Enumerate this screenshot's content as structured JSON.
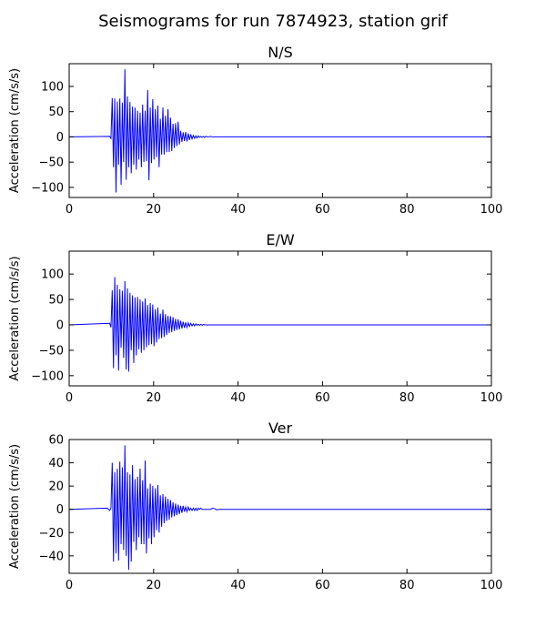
{
  "figure": {
    "title": "Seismograms for run 7874923, station grif"
  },
  "chart_data": [
    {
      "type": "line",
      "title": "N/S",
      "xlabel": "",
      "ylabel": "Acceleration (cm/s/s)",
      "xlim": [
        0,
        100
      ],
      "ylim": [
        -120,
        145
      ],
      "xticks": [
        0,
        20,
        40,
        60,
        80,
        100
      ],
      "yticks": [
        -100,
        -50,
        0,
        50,
        100
      ],
      "grid": false,
      "series": [
        {
          "color": "#0000ff",
          "x": [
            0,
            9.6,
            9.9,
            10.2,
            10.5,
            10.8,
            11.1,
            11.4,
            11.7,
            12.0,
            12.3,
            12.6,
            12.9,
            13.2,
            13.5,
            13.8,
            14.1,
            14.4,
            14.7,
            15.0,
            15.3,
            15.6,
            15.9,
            16.2,
            16.5,
            16.8,
            17.1,
            17.4,
            17.7,
            18.0,
            18.3,
            18.6,
            18.9,
            19.2,
            19.5,
            19.8,
            20.1,
            20.4,
            20.7,
            21.0,
            21.3,
            21.6,
            21.9,
            22.2,
            22.5,
            22.8,
            23.1,
            23.4,
            23.7,
            24.0,
            24.3,
            24.6,
            24.9,
            25.2,
            25.5,
            25.8,
            26.1,
            26.4,
            26.7,
            27.0,
            27.3,
            27.6,
            27.9,
            28.2,
            28.5,
            28.8,
            29.1,
            29.4,
            29.7,
            30.0,
            30.3,
            30.6,
            30.9,
            31.2,
            31.5,
            31.8,
            32.1,
            32.4,
            32.7,
            33.0,
            33.5,
            34.0,
            35.0,
            100
          ],
          "y": [
            0,
            1,
            -3,
            77,
            -60,
            76,
            -110,
            70,
            -55,
            76,
            -95,
            68,
            -50,
            134,
            -85,
            80,
            -60,
            69,
            -72,
            60,
            -55,
            58,
            -65,
            52,
            -45,
            48,
            -60,
            64,
            -50,
            52,
            -48,
            93,
            -86,
            58,
            -52,
            75,
            -45,
            55,
            -40,
            62,
            -60,
            36,
            -35,
            58,
            -35,
            42,
            -30,
            55,
            -30,
            38,
            -28,
            26,
            -22,
            27,
            -18,
            30,
            -15,
            12,
            -10,
            9,
            -8,
            10,
            -9,
            7,
            -6,
            5,
            -4,
            3,
            -3,
            2,
            -2,
            2,
            -1,
            1,
            -1,
            1,
            -1,
            1,
            0,
            0,
            1,
            0,
            0,
            0
          ]
        }
      ]
    },
    {
      "type": "line",
      "title": "E/W",
      "xlabel": "",
      "ylabel": "Acceleration (cm/s/s)",
      "xlim": [
        0,
        100
      ],
      "ylim": [
        -120,
        145
      ],
      "xticks": [
        0,
        20,
        40,
        60,
        80,
        100
      ],
      "yticks": [
        -100,
        -50,
        0,
        50,
        100
      ],
      "grid": false,
      "series": [
        {
          "color": "#0000ff",
          "x": [
            0,
            9.6,
            9.9,
            10.2,
            10.5,
            10.8,
            11.1,
            11.4,
            11.7,
            12.0,
            12.3,
            12.6,
            12.9,
            13.2,
            13.5,
            13.8,
            14.1,
            14.4,
            14.7,
            15.0,
            15.3,
            15.6,
            15.9,
            16.2,
            16.5,
            16.8,
            17.1,
            17.4,
            17.7,
            18.0,
            18.3,
            18.6,
            18.9,
            19.2,
            19.5,
            19.8,
            20.1,
            20.4,
            20.7,
            21.0,
            21.3,
            21.6,
            21.9,
            22.2,
            22.5,
            22.8,
            23.1,
            23.4,
            23.7,
            24.0,
            24.3,
            24.6,
            24.9,
            25.2,
            25.5,
            25.8,
            26.1,
            26.4,
            26.7,
            27.0,
            27.3,
            27.6,
            27.9,
            28.2,
            28.5,
            28.8,
            29.1,
            29.4,
            29.7,
            30.0,
            30.3,
            30.6,
            30.9,
            31.2,
            31.5,
            31.8,
            32.1,
            32.4,
            32.7,
            33.0,
            33.5,
            34.0,
            35.0,
            100
          ],
          "y": [
            0,
            3,
            -5,
            68,
            -85,
            94,
            -60,
            79,
            -90,
            70,
            -45,
            67,
            -65,
            86,
            -88,
            72,
            -92,
            63,
            -50,
            58,
            -75,
            54,
            -60,
            55,
            -48,
            50,
            -55,
            46,
            -50,
            52,
            -44,
            39,
            -40,
            43,
            -38,
            40,
            -42,
            31,
            -35,
            34,
            -28,
            22,
            -26,
            30,
            -24,
            21,
            -20,
            18,
            -16,
            17,
            -14,
            15,
            -12,
            12,
            -10,
            11,
            -9,
            8,
            -7,
            6,
            -6,
            5,
            -5,
            4,
            -3,
            3,
            -2,
            2,
            -2,
            2,
            -1,
            1,
            -1,
            1,
            -1,
            1,
            0,
            0,
            0,
            0,
            0,
            0,
            0,
            0
          ]
        }
      ]
    },
    {
      "type": "line",
      "title": "Ver",
      "xlabel": "",
      "ylabel": "Acceleration (cm/s/s)",
      "xlim": [
        0,
        100
      ],
      "ylim": [
        -55,
        60
      ],
      "xticks": [
        0,
        20,
        40,
        60,
        80,
        100
      ],
      "yticks": [
        -40,
        -20,
        0,
        20,
        40,
        60
      ],
      "grid": false,
      "series": [
        {
          "color": "#0000ff",
          "x": [
            0,
            9.0,
            9.6,
            9.9,
            10.2,
            10.5,
            10.8,
            11.1,
            11.4,
            11.7,
            12.0,
            12.3,
            12.6,
            12.9,
            13.2,
            13.5,
            13.8,
            14.1,
            14.4,
            14.7,
            15.0,
            15.3,
            15.6,
            15.9,
            16.2,
            16.5,
            16.8,
            17.1,
            17.4,
            17.7,
            18.0,
            18.3,
            18.6,
            18.9,
            19.2,
            19.5,
            19.8,
            20.1,
            20.4,
            20.7,
            21.0,
            21.3,
            21.6,
            21.9,
            22.2,
            22.5,
            22.8,
            23.1,
            23.4,
            23.7,
            24.0,
            24.3,
            24.6,
            24.9,
            25.2,
            25.5,
            25.8,
            26.1,
            26.4,
            26.7,
            27.0,
            27.3,
            27.6,
            27.9,
            28.2,
            28.5,
            28.8,
            29.1,
            29.4,
            29.7,
            30.0,
            30.3,
            30.6,
            30.9,
            31.2,
            31.5,
            31.8,
            32.1,
            32.4,
            32.7,
            33.0,
            33.5,
            34.0,
            34.5,
            35.0,
            35.5,
            36.0,
            100
          ],
          "y": [
            0,
            1,
            -1,
            1,
            40,
            -45,
            32,
            -38,
            35,
            -44,
            41,
            -30,
            36,
            -35,
            55,
            -40,
            32,
            -52,
            30,
            -45,
            38,
            -28,
            26,
            -35,
            28,
            -24,
            35,
            -30,
            25,
            -30,
            42,
            -38,
            18,
            -25,
            22,
            -30,
            20,
            -24,
            18,
            -18,
            21,
            -20,
            12,
            -15,
            13,
            -12,
            11,
            -10,
            9,
            -9,
            8,
            -7,
            6,
            -6,
            5,
            -5,
            4,
            -4,
            3,
            -3,
            3,
            -2,
            2,
            -2,
            2,
            -1,
            1,
            -1,
            1,
            -1,
            1,
            -1,
            1,
            0,
            1,
            0,
            0,
            0,
            0,
            0,
            0,
            0,
            1,
            0.5,
            -0.5,
            0,
            0,
            0
          ]
        }
      ]
    }
  ]
}
